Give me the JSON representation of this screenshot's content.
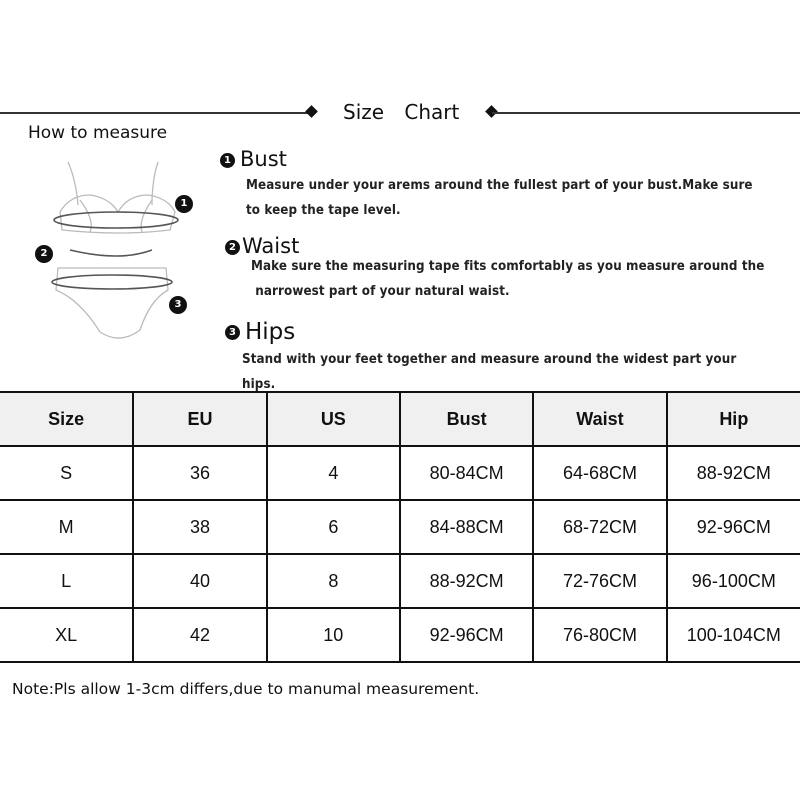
{
  "header": {
    "title": "Size Chart"
  },
  "how_to_measure": {
    "label": "How to measure",
    "steps": [
      {
        "number": "1",
        "title": "Bust",
        "lines": [
          "Measure under your arems around the fullest part of your bust.Make sure",
          "to keep the tape level."
        ]
      },
      {
        "number": "2",
        "title": "Waist",
        "lines": [
          "Make sure the measuring tape fits comfortably as you measure around the",
          " narrowest part of your natural waist."
        ]
      },
      {
        "number": "3",
        "title": "Hips",
        "lines": [
          "Stand with your feet together and measure around the widest part your hips."
        ]
      }
    ]
  },
  "table": {
    "headers": [
      "Size",
      "EU",
      "US",
      "Bust",
      "Waist",
      "Hip"
    ],
    "rows": [
      [
        "S",
        "36",
        "4",
        "80-84CM",
        "64-68CM",
        "88-92CM"
      ],
      [
        "M",
        "38",
        "6",
        "84-88CM",
        "68-72CM",
        "92-96CM"
      ],
      [
        "L",
        "40",
        "8",
        "88-92CM",
        "72-76CM",
        "96-100CM"
      ],
      [
        "XL",
        "42",
        "10",
        "92-96CM",
        "76-80CM",
        "100-104CM"
      ]
    ]
  },
  "note": "Note:Pls allow 1-3cm differs,due to manumal measurement."
}
